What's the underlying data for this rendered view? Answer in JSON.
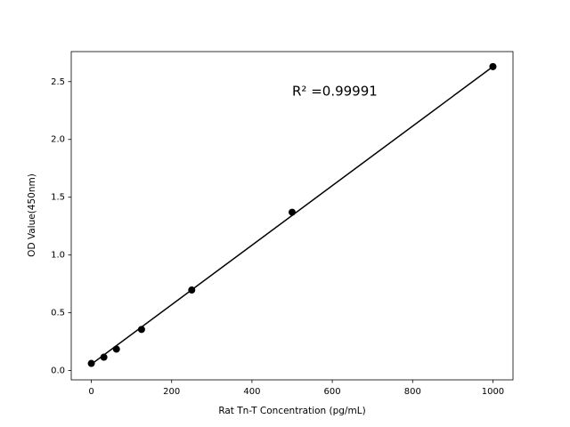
{
  "chart_data": {
    "type": "scatter",
    "xlabel": "Rat Tn-T Concentration (pg/mL)",
    "ylabel": "OD Value(450nm)",
    "annotation": "R² =0.99991",
    "xlim": [
      -50,
      1050
    ],
    "ylim": [
      -0.08,
      2.76
    ],
    "xticks": [
      0,
      200,
      400,
      600,
      800,
      1000
    ],
    "yticks": [
      {
        "value": 0,
        "label": "0.0"
      },
      0.5,
      {
        "value": 1,
        "label": "1.0"
      },
      1.5,
      {
        "value": 2,
        "label": "2.0"
      },
      2.5
    ],
    "series": [
      {
        "type": "scatter",
        "color": "#000000",
        "x": [
          0,
          31.25,
          62.5,
          125,
          250,
          500,
          1000
        ],
        "values": [
          0.062,
          0.116,
          0.186,
          0.356,
          0.697,
          1.37,
          2.63
        ]
      },
      {
        "type": "line",
        "color": "#000000",
        "x": [
          0,
          1000
        ],
        "values": [
          0.055,
          2.63
        ]
      }
    ]
  }
}
